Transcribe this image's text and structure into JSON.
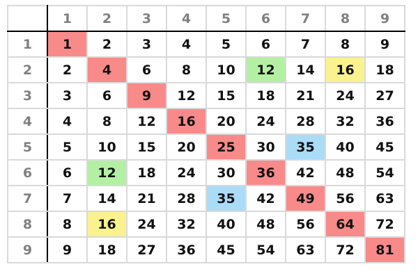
{
  "column_headers": [
    "1",
    "2",
    "3",
    "4",
    "5",
    "6",
    "7",
    "8",
    "9"
  ],
  "row_headers": [
    "1",
    "2",
    "3",
    "4",
    "5",
    "6",
    "7",
    "8",
    "9"
  ],
  "rows": [
    [
      "1",
      "2",
      "3",
      "4",
      "5",
      "6",
      "7",
      "8",
      "9"
    ],
    [
      "2",
      "4",
      "6",
      "8",
      "10",
      "12",
      "14",
      "16",
      "18"
    ],
    [
      "3",
      "6",
      "9",
      "12",
      "15",
      "18",
      "21",
      "24",
      "27"
    ],
    [
      "4",
      "8",
      "12",
      "16",
      "20",
      "24",
      "28",
      "32",
      "36"
    ],
    [
      "5",
      "10",
      "15",
      "20",
      "25",
      "30",
      "35",
      "40",
      "45"
    ],
    [
      "6",
      "12",
      "18",
      "24",
      "30",
      "36",
      "42",
      "48",
      "54"
    ],
    [
      "7",
      "14",
      "21",
      "28",
      "35",
      "42",
      "49",
      "56",
      "63"
    ],
    [
      "8",
      "16",
      "24",
      "32",
      "40",
      "48",
      "56",
      "64",
      "72"
    ],
    [
      "9",
      "18",
      "27",
      "36",
      "45",
      "54",
      "63",
      "72",
      "81"
    ]
  ],
  "highlights": [
    {
      "row": 1,
      "col": 1,
      "color": "#f98a8a"
    },
    {
      "row": 2,
      "col": 2,
      "color": "#f98a8a"
    },
    {
      "row": 3,
      "col": 3,
      "color": "#f98a8a"
    },
    {
      "row": 4,
      "col": 4,
      "color": "#f98a8a"
    },
    {
      "row": 5,
      "col": 5,
      "color": "#f98a8a"
    },
    {
      "row": 6,
      "col": 6,
      "color": "#f98a8a"
    },
    {
      "row": 7,
      "col": 7,
      "color": "#f98a8a"
    },
    {
      "row": 8,
      "col": 8,
      "color": "#f98a8a"
    },
    {
      "row": 9,
      "col": 9,
      "color": "#f98a8a"
    },
    {
      "row": 2,
      "col": 6,
      "color": "#b4f0a4"
    },
    {
      "row": 6,
      "col": 2,
      "color": "#b4f0a4"
    },
    {
      "row": 2,
      "col": 8,
      "color": "#f9f28f"
    },
    {
      "row": 8,
      "col": 2,
      "color": "#f9f28f"
    },
    {
      "row": 5,
      "col": 7,
      "color": "#aadcf8"
    },
    {
      "row": 7,
      "col": 5,
      "color": "#aadcf8"
    }
  ]
}
